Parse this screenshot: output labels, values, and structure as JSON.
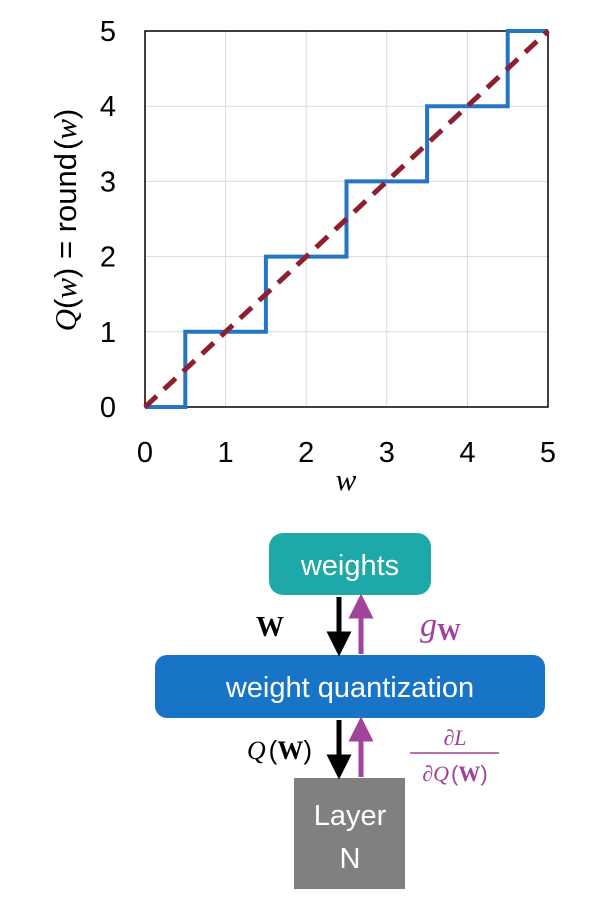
{
  "chart_data": {
    "type": "line",
    "xlabel": "w",
    "ylabel_prefix": "Q",
    "ylabel_mid": "(",
    "ylabel_var": "w",
    "ylabel_close": ")",
    "ylabel_eq": " = round",
    "xlim": [
      0,
      5
    ],
    "ylim": [
      0,
      5
    ],
    "x_ticks": [
      "0",
      "1",
      "2",
      "3",
      "4",
      "5"
    ],
    "y_ticks": [
      "0",
      "1",
      "2",
      "3",
      "4",
      "5"
    ],
    "grid": true,
    "series": [
      {
        "style": "step",
        "color": "#2476c2",
        "x": [
          0,
          0.5,
          0.5,
          1.5,
          1.5,
          2.5,
          2.5,
          3.5,
          3.5,
          4.5,
          4.5,
          5
        ],
        "y": [
          0,
          0,
          1,
          1,
          2,
          2,
          3,
          3,
          4,
          4,
          5,
          5
        ]
      },
      {
        "style": "dashed",
        "color": "#8e1f30",
        "x": [
          0,
          5
        ],
        "y": [
          0,
          5
        ]
      }
    ]
  },
  "diagram": {
    "colors": {
      "weights_box": "#1fa8a8",
      "quant_box": "#1874c6",
      "layer_box": "#808080",
      "arrow_forward": "#000000",
      "arrow_backward": "#a0449a"
    },
    "weights_label": "weights",
    "quant_label": "weight quantization",
    "layer_line1": "Layer",
    "layer_line2": "N",
    "w_symbol": "W",
    "g_symbol": "g",
    "g_sub": "W",
    "q_func": "Q",
    "q_open": "(",
    "q_arg": "W",
    "q_close": ")",
    "frac_num": "∂L",
    "frac_den_d": "∂",
    "frac_den_q": "Q",
    "frac_den_open": "(",
    "frac_den_arg": "W",
    "frac_den_close": ")"
  }
}
